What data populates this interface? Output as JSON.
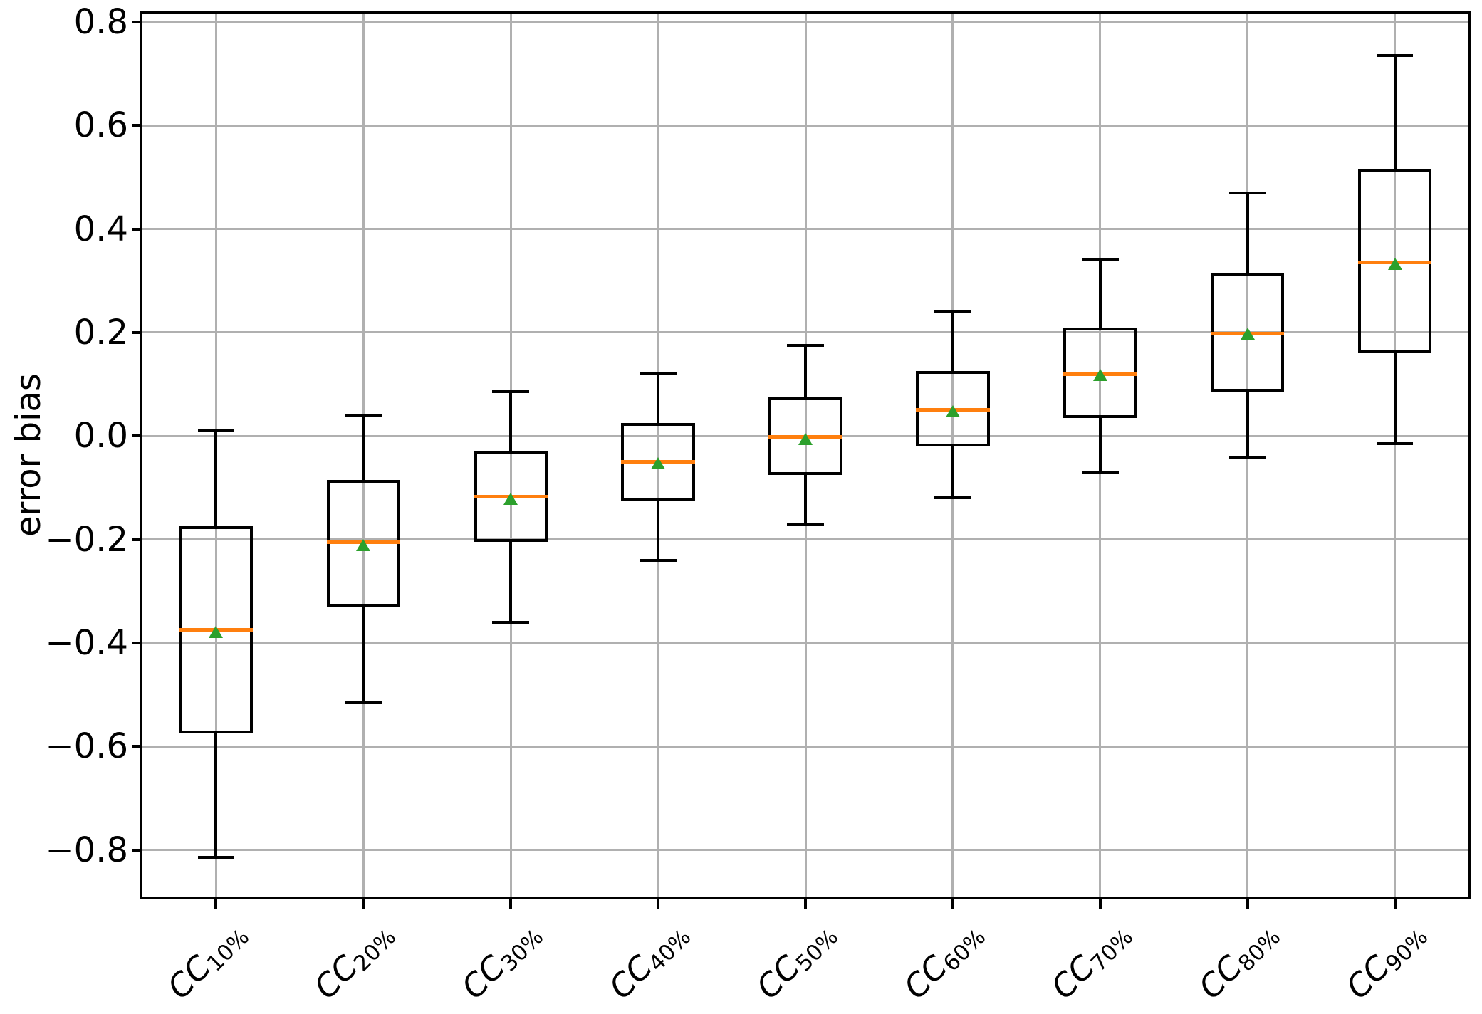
{
  "figure": {
    "background": "#ffffff"
  },
  "chart_data": {
    "type": "boxplot",
    "title": "",
    "xlabel": "",
    "ylabel": "error bias",
    "ylim": [
      -0.89,
      0.815
    ],
    "xlim": [
      0.5,
      9.5
    ],
    "grid": true,
    "yticks": [
      0.8,
      0.6,
      0.4,
      0.2,
      0.0,
      -0.2,
      -0.4,
      -0.6,
      -0.8
    ],
    "ytick_labels": [
      "0.8",
      "0.6",
      "0.4",
      "0.2",
      "0.0",
      "−0.2",
      "−0.4",
      "−0.6",
      "−0.8"
    ],
    "categories": [
      {
        "prefix": "CC",
        "subscript": "10%"
      },
      {
        "prefix": "CC",
        "subscript": "20%"
      },
      {
        "prefix": "CC",
        "subscript": "30%"
      },
      {
        "prefix": "CC",
        "subscript": "40%"
      },
      {
        "prefix": "CC",
        "subscript": "50%"
      },
      {
        "prefix": "CC",
        "subscript": "60%"
      },
      {
        "prefix": "CC",
        "subscript": "70%"
      },
      {
        "prefix": "CC",
        "subscript": "80%"
      },
      {
        "prefix": "CC",
        "subscript": "90%"
      }
    ],
    "boxes": [
      {
        "whisker_low": -0.815,
        "q1": -0.575,
        "median": -0.375,
        "mean": -0.38,
        "q3": -0.175,
        "whisker_high": 0.01
      },
      {
        "whisker_low": -0.515,
        "q1": -0.33,
        "median": -0.205,
        "mean": -0.212,
        "q3": -0.085,
        "whisker_high": 0.04
      },
      {
        "whisker_low": -0.36,
        "q1": -0.205,
        "median": -0.118,
        "mean": -0.122,
        "q3": -0.028,
        "whisker_high": 0.085
      },
      {
        "whisker_low": -0.24,
        "q1": -0.125,
        "median": -0.05,
        "mean": -0.054,
        "q3": 0.025,
        "whisker_high": 0.122
      },
      {
        "whisker_low": -0.17,
        "q1": -0.075,
        "median": -0.002,
        "mean": -0.006,
        "q3": 0.075,
        "whisker_high": 0.175
      },
      {
        "whisker_low": -0.12,
        "q1": -0.02,
        "median": 0.05,
        "mean": 0.047,
        "q3": 0.125,
        "whisker_high": 0.24
      },
      {
        "whisker_low": -0.07,
        "q1": 0.035,
        "median": 0.12,
        "mean": 0.117,
        "q3": 0.21,
        "whisker_high": 0.34
      },
      {
        "whisker_low": -0.043,
        "q1": 0.085,
        "median": 0.198,
        "mean": 0.197,
        "q3": 0.315,
        "whisker_high": 0.47
      },
      {
        "whisker_low": -0.015,
        "q1": 0.16,
        "median": 0.335,
        "mean": 0.332,
        "q3": 0.515,
        "whisker_high": 0.735
      }
    ],
    "colors": {
      "median": "#ff7f0e",
      "mean": "#2ca02c",
      "box": "#000000",
      "whisker": "#000000",
      "grid": "#b0b0b0",
      "spine": "#000000",
      "text": "#000000"
    },
    "legend_position": "none"
  }
}
